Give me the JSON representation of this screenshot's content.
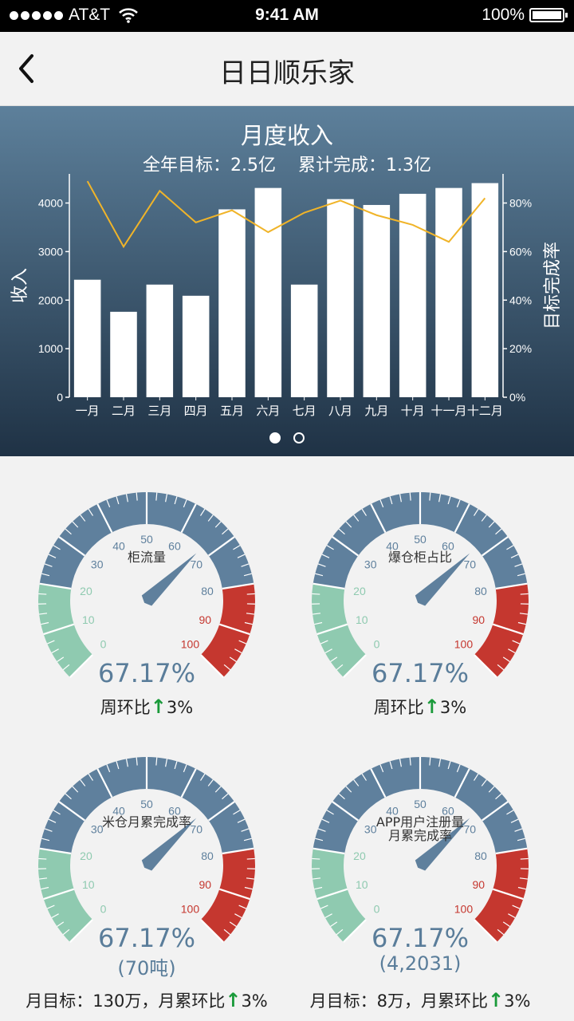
{
  "status": {
    "carrier": "AT&T",
    "time": "9:41 AM",
    "battery": "100%"
  },
  "nav": {
    "title": "日日顺乐家"
  },
  "chart_panel": {
    "title": "月度收入",
    "subtitle_target": "全年目标：2.5亿",
    "subtitle_done": "累计完成：1.3亿"
  },
  "chart_data": {
    "type": "bar",
    "title": "月度收入",
    "categories": [
      "一月",
      "二月",
      "三月",
      "四月",
      "五月",
      "六月",
      "七月",
      "八月",
      "九月",
      "十月",
      "十一月",
      "十二月"
    ],
    "series": [
      {
        "values": [
          2420,
          1760,
          2320,
          2090,
          3870,
          4310,
          2320,
          4080,
          3960,
          4190,
          4310,
          4410
        ]
      },
      {
        "type": "line",
        "axis": "right",
        "values": [
          89,
          62,
          85,
          72,
          77,
          68,
          76,
          81,
          75,
          71,
          64,
          82
        ]
      }
    ],
    "ylabel": "收入",
    "y2label": "目标完成率",
    "ylim": [
      0,
      4600
    ],
    "y2lim": [
      0,
      92
    ],
    "yticks": [
      "0",
      "1000",
      "2000",
      "3000",
      "4000"
    ],
    "y2ticks": [
      "0%",
      "20%",
      "40%",
      "60%",
      "80%"
    ],
    "bar_color": "#ffffff",
    "line_color": "#f0b429"
  },
  "gauges": [
    {
      "name_lines": [
        "柜流量"
      ],
      "value": "67.17%",
      "sub": "",
      "footer_prefix": "周环比",
      "footer_change": "3%"
    },
    {
      "name_lines": [
        "爆仓柜占比"
      ],
      "value": "67.17%",
      "sub": "",
      "footer_prefix": "周环比",
      "footer_change": "3%"
    },
    {
      "name_lines": [
        "米仓月累完成率"
      ],
      "value": "67.17%",
      "sub": "(70吨)",
      "footer_prefix": "月目标：130万，月累环比",
      "footer_change": "3%"
    },
    {
      "name_lines": [
        "APP用户注册量",
        "月累完成率"
      ],
      "value": "67.17%",
      "sub": "(4,2031)",
      "footer_prefix": "月目标：8万，月累环比",
      "footer_change": "3%"
    }
  ],
  "gauge_scale": {
    "ticks": [
      "0",
      "10",
      "20",
      "30",
      "40",
      "50",
      "60",
      "70",
      "80",
      "90",
      "100"
    ],
    "needle_percent": 67.17
  },
  "colors": {
    "gauge_blue": "#5f809d",
    "gauge_green": "#8fcab0",
    "gauge_red": "#c5372f",
    "accent_up": "#1a9a3a"
  },
  "icons": {
    "back": "chevron-left-icon",
    "wifi": "wifi-icon",
    "battery": "battery-icon",
    "up": "arrow-up-icon"
  }
}
